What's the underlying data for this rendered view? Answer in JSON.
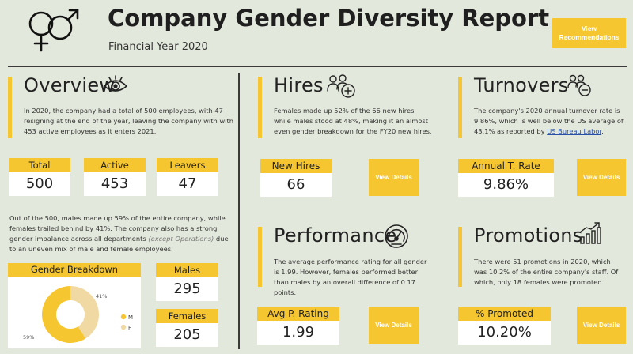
{
  "header": {
    "title": "Company Gender Diversity Report",
    "subtitle": "Financial Year 2020",
    "button_label": "View Recommendations",
    "logo_icon": "gender-symbols-icon"
  },
  "overview": {
    "title": "Overview",
    "icon": "eye-icon",
    "text": "In 2020, the company had a total of 500 employees, with 47 resigning at the end of the year, leaving the company with with 453 active employees as it enters 2021.",
    "kpis": [
      {
        "label": "Total",
        "value": "500"
      },
      {
        "label": "Active",
        "value": "453"
      },
      {
        "label": "Leavers",
        "value": "47"
      }
    ],
    "text2_a": "Out of the 500, males made up 59% of the entire company, while females trailed behind by 41%. The company also has a strong gender imbalance across all departments ",
    "text2_italic": "(except Operations)",
    "text2_b": " due to an uneven mix of male and female employees."
  },
  "gender_breakdown": {
    "title": "Gender Breakdown",
    "slice_labels": {
      "female": "41%",
      "male": "59%"
    },
    "legend": {
      "male": "M",
      "female": "F"
    },
    "colors": {
      "male": "#f6c630",
      "female": "#f1d9a3"
    },
    "male_share": 0.59,
    "males_label": "Males",
    "males_value": "295",
    "females_label": "Females",
    "females_value": "205"
  },
  "hires": {
    "title": "Hires",
    "icon": "people-add-icon",
    "text": "Females made up 52% of the 66 new hires while males stood at 48%, making it an almost even gender breakdown for the FY20 new hires.",
    "kpi_label": "New Hires",
    "kpi_value": "66",
    "button_label": "View Details"
  },
  "turnovers": {
    "title": "Turnovers",
    "icon": "people-remove-icon",
    "text_a": "The company's 2020 annual turnover rate is 9.86%, which is well below the US average of 43.1% as reported by ",
    "text_link": "US Bureau Labor",
    "text_b": ".",
    "kpi_label": "Annual T. Rate",
    "kpi_value": "9.86%",
    "button_label": "View Details"
  },
  "performance": {
    "title": "Performance",
    "icon": "gauge-icon",
    "text": "The average performance rating for all gender is 1.99. However, females performed better than males by an overall difference of 0.17 points.",
    "kpi_label": "Avg P. Rating",
    "kpi_value": "1.99",
    "button_label": "View Details"
  },
  "promotions": {
    "title": "Promotions",
    "icon": "growth-chart-icon",
    "text": "There were 51 promotions in 2020, which was 10.2% of the entire company's staff. Of which, only 18 females were promoted.",
    "kpi_label": "% Promoted",
    "kpi_value": "10.20%",
    "button_label": "View Details"
  },
  "colors": {
    "accent": "#f6c630",
    "background": "#e3e8dc"
  }
}
